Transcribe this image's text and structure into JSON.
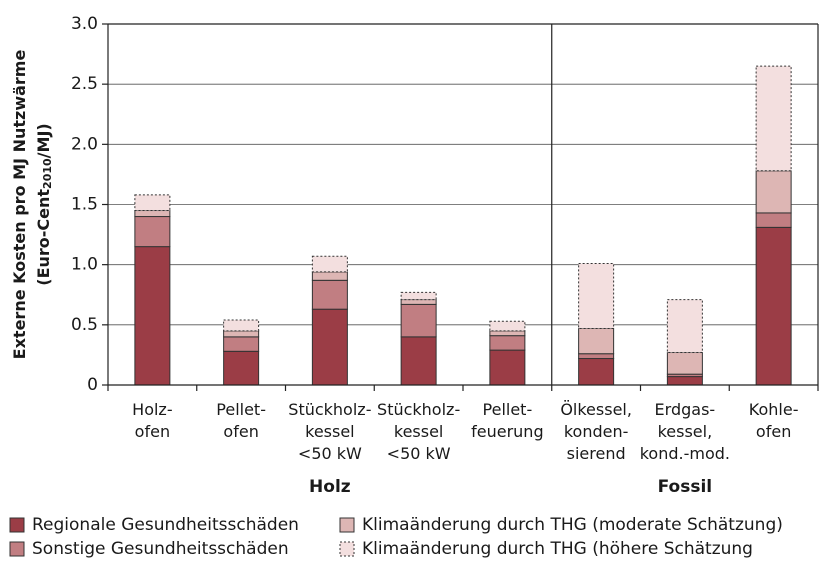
{
  "chart_data": {
    "type": "stacked_bar",
    "ylabel": [
      "Externe Kosten pro MJ Nutzwärme",
      "(Euro-Cent",
      "2010",
      "/MJ)"
    ],
    "categories": [
      "Holz-\nofen",
      "Pellet-\nofen",
      "Stückholz-\nkessel\n<50 kW",
      "Stückholz-\nkessel\n<50 kW",
      "Pellet-\nfeuerung",
      "Ölkessel,\nkonden-\nsierend",
      "Erdgas-\nkessel,\nkond.-mod.",
      "Kohle-\nofen"
    ],
    "groups": [
      {
        "name": "Holz",
        "count": 5
      },
      {
        "name": "Fossil",
        "count": 3
      }
    ],
    "series": [
      {
        "name": "Regionale Gesundheitsschäden",
        "color": "#9b3d46",
        "dashed": false,
        "values": [
          1.15,
          0.28,
          0.63,
          0.4,
          0.29,
          0.22,
          0.07,
          1.31
        ]
      },
      {
        "name": "Sonstige Gesundheitsschäden",
        "color": "#c17e82",
        "dashed": false,
        "values": [
          0.25,
          0.12,
          0.24,
          0.27,
          0.12,
          0.04,
          0.02,
          0.12
        ]
      },
      {
        "name": "Klimaänderung durch THG (moderate Schätzung)",
        "color": "#ddb6b4",
        "dashed": false,
        "values": [
          0.05,
          0.05,
          0.07,
          0.04,
          0.04,
          0.21,
          0.18,
          0.35
        ]
      },
      {
        "name": "Klimaänderung durch THG (höhere Schätzung",
        "color": "#f3dfdf",
        "dashed": true,
        "values": [
          0.13,
          0.09,
          0.13,
          0.06,
          0.08,
          0.54,
          0.44,
          0.87
        ]
      }
    ],
    "ylim": [
      0,
      3.0
    ],
    "yticks": [
      {
        "value": 0,
        "label": "0"
      },
      0.5,
      {
        "value": 1.0,
        "label": "1.0"
      },
      1.5,
      {
        "value": 2.0,
        "label": "2.0"
      },
      2.5,
      {
        "value": 3.0,
        "label": "3.0"
      }
    ],
    "grid": true
  }
}
